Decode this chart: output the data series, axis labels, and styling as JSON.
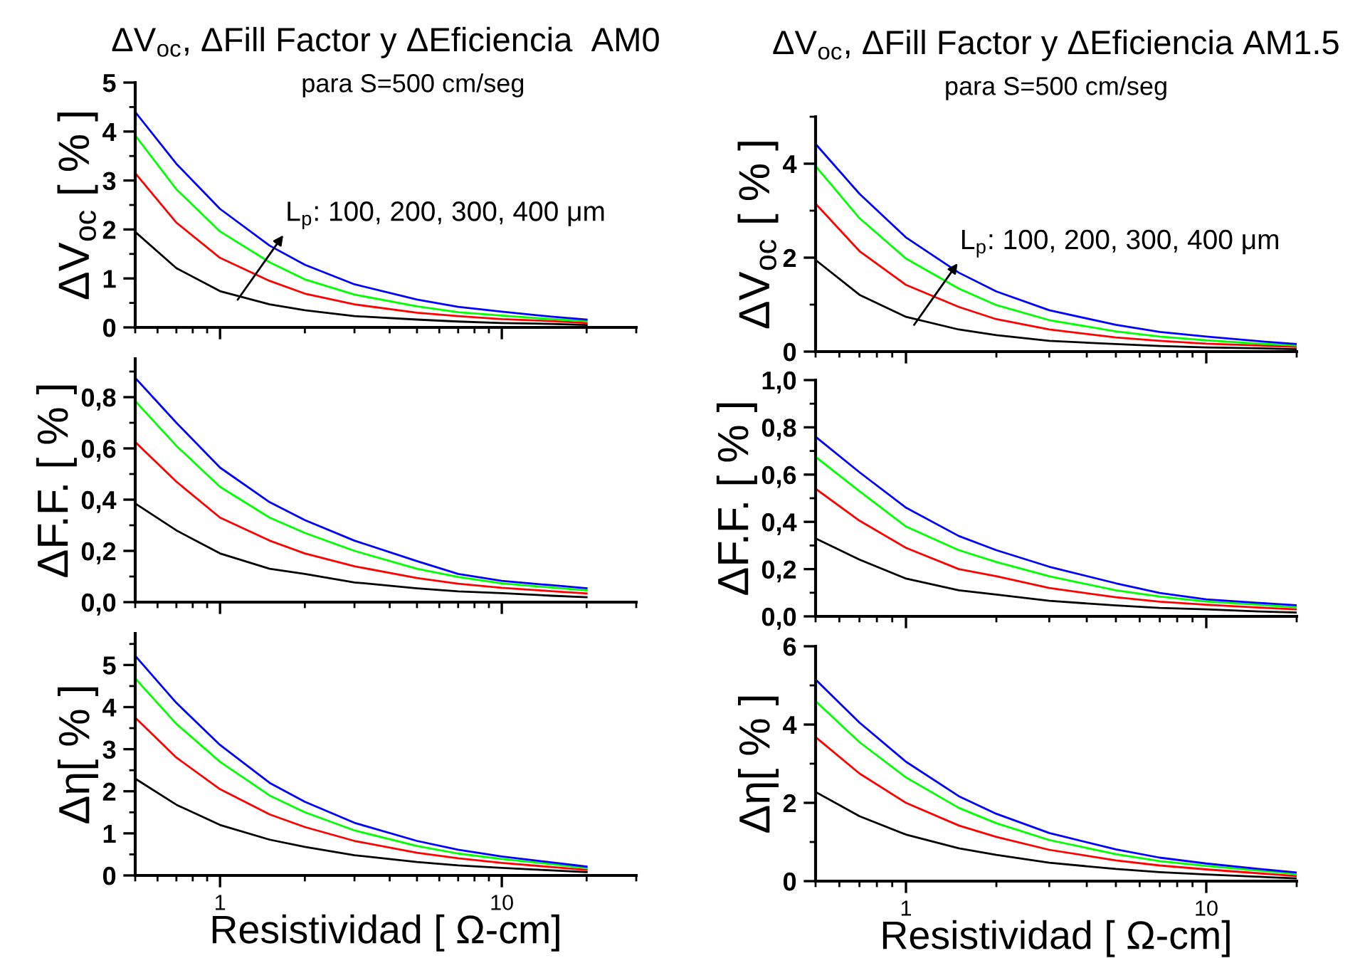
{
  "chart_data": [
    {
      "type": "line",
      "title": "ΔV$_{oc}$, ΔFill Factor y ΔEficiencia  AM0",
      "subtitle": "para S=500 cm/seg",
      "ylabel": "ΔV$_{oc}$ [ % ]",
      "log": "x",
      "xlim": [
        0.5,
        30
      ],
      "xticks": [
        1,
        10
      ],
      "ylim": [
        0,
        5
      ],
      "yticks": [
        0,
        1,
        2,
        3,
        4,
        5
      ],
      "tick_labels": "y",
      "grid": false,
      "x": [
        0.5,
        0.7,
        1,
        1.5,
        2,
        3,
        5,
        7,
        10,
        15,
        20
      ],
      "annotations": [
        "L$_{p}$: 100, 200, 300, 400 μm"
      ],
      "series": [
        {
          "color": "#000000",
          "values": [
            1.95,
            1.21,
            0.74,
            0.47,
            0.35,
            0.23,
            0.16,
            0.12,
            0.09,
            0.07,
            0.05
          ]
        },
        {
          "color": "#ff0000",
          "values": [
            3.15,
            2.14,
            1.42,
            0.95,
            0.69,
            0.47,
            0.3,
            0.23,
            0.17,
            0.13,
            0.09
          ]
        },
        {
          "color": "#00ff00",
          "values": [
            3.92,
            2.82,
            1.96,
            1.33,
            0.98,
            0.67,
            0.43,
            0.31,
            0.24,
            0.17,
            0.13
          ]
        },
        {
          "color": "#0000ff",
          "values": [
            4.4,
            3.34,
            2.42,
            1.67,
            1.28,
            0.88,
            0.57,
            0.42,
            0.32,
            0.22,
            0.16
          ]
        }
      ]
    },
    {
      "type": "line",
      "title": "ΔV$_{oc}$, ΔFill Factor y ΔEficiencia AM1.5",
      "subtitle": "para S=500 cm/seg",
      "ylabel": "ΔV$_{oc}$ [ % ]",
      "log": "x",
      "xlim": [
        0.5,
        20
      ],
      "xticks": [
        1,
        10
      ],
      "ylim": [
        0,
        5
      ],
      "yticks": [
        0,
        2,
        4
      ],
      "tick_labels": "y",
      "grid": false,
      "x": [
        0.5,
        0.7,
        1,
        1.5,
        2,
        3,
        5,
        7,
        10,
        15,
        20
      ],
      "annotations": [
        "L$_{p}$: 100, 200, 300, 400 μm"
      ],
      "series": [
        {
          "color": "#000000",
          "values": [
            1.95,
            1.21,
            0.74,
            0.47,
            0.35,
            0.23,
            0.16,
            0.12,
            0.09,
            0.07,
            0.05
          ]
        },
        {
          "color": "#ff0000",
          "values": [
            3.15,
            2.14,
            1.42,
            0.95,
            0.69,
            0.47,
            0.3,
            0.23,
            0.17,
            0.13,
            0.1
          ]
        },
        {
          "color": "#00ff00",
          "values": [
            3.95,
            2.84,
            1.98,
            1.34,
            0.99,
            0.67,
            0.43,
            0.32,
            0.24,
            0.17,
            0.13
          ]
        },
        {
          "color": "#0000ff",
          "values": [
            4.42,
            3.36,
            2.43,
            1.68,
            1.28,
            0.88,
            0.57,
            0.42,
            0.32,
            0.22,
            0.16
          ]
        }
      ]
    },
    {
      "type": "line",
      "ylabel": "ΔF.F. [ % ]",
      "log": "x",
      "xlim": [
        0.5,
        30
      ],
      "xticks": [
        1,
        10
      ],
      "ylim": [
        0,
        0.95
      ],
      "yticks": [
        {
          "value": 0,
          "label": "0,0"
        },
        {
          "value": 0.2,
          "label": "0,2"
        },
        {
          "value": 0.4,
          "label": "0,4"
        },
        {
          "value": 0.6,
          "label": "0,6"
        },
        {
          "value": 0.8,
          "label": "0,8"
        }
      ],
      "tick_labels": "y",
      "grid": false,
      "x": [
        0.5,
        0.7,
        1,
        1.5,
        2,
        3,
        5,
        7,
        10,
        15,
        20
      ],
      "series": [
        {
          "color": "#000000",
          "values": [
            0.385,
            0.28,
            0.19,
            0.13,
            0.11,
            0.077,
            0.054,
            0.042,
            0.035,
            0.025,
            0.019
          ]
        },
        {
          "color": "#ff0000",
          "values": [
            0.625,
            0.47,
            0.33,
            0.24,
            0.19,
            0.14,
            0.094,
            0.072,
            0.056,
            0.043,
            0.034
          ]
        },
        {
          "color": "#00ff00",
          "values": [
            0.785,
            0.61,
            0.45,
            0.33,
            0.27,
            0.2,
            0.13,
            0.098,
            0.073,
            0.057,
            0.046
          ]
        },
        {
          "color": "#0000ff",
          "values": [
            0.875,
            0.7,
            0.525,
            0.39,
            0.32,
            0.24,
            0.16,
            0.11,
            0.083,
            0.066,
            0.054
          ]
        }
      ]
    },
    {
      "type": "line",
      "ylabel": "ΔF.F. [ % ]",
      "log": "x",
      "xlim": [
        0.5,
        20
      ],
      "xticks": [
        1,
        10
      ],
      "ylim": [
        0,
        1
      ],
      "yticks": [
        {
          "value": 0,
          "label": "0,0"
        },
        {
          "value": 0.2,
          "label": "0,2"
        },
        {
          "value": 0.4,
          "label": "0,4"
        },
        {
          "value": 0.6,
          "label": "0,6"
        },
        {
          "value": 0.8,
          "label": "0,8"
        },
        {
          "value": 1,
          "label": "1,0"
        }
      ],
      "tick_labels": "y",
      "grid": false,
      "x": [
        0.5,
        0.7,
        1,
        1.5,
        2,
        3,
        5,
        7,
        10,
        15,
        20
      ],
      "series": [
        {
          "color": "#000000",
          "values": [
            0.33,
            0.24,
            0.16,
            0.11,
            0.092,
            0.066,
            0.046,
            0.036,
            0.03,
            0.021,
            0.016
          ]
        },
        {
          "color": "#ff0000",
          "values": [
            0.54,
            0.405,
            0.29,
            0.2,
            0.17,
            0.12,
            0.081,
            0.062,
            0.049,
            0.037,
            0.03
          ]
        },
        {
          "color": "#00ff00",
          "values": [
            0.675,
            0.53,
            0.38,
            0.28,
            0.23,
            0.17,
            0.11,
            0.084,
            0.063,
            0.049,
            0.039
          ]
        },
        {
          "color": "#0000ff",
          "values": [
            0.76,
            0.61,
            0.46,
            0.34,
            0.28,
            0.21,
            0.14,
            0.099,
            0.072,
            0.057,
            0.047
          ]
        }
      ]
    },
    {
      "type": "line",
      "ylabel": "Δη[ % ]",
      "xlabel": "Resistividad [ Ω-cm]",
      "log": "x",
      "xlim": [
        0.5,
        30
      ],
      "xticks": [
        1,
        10
      ],
      "ylim": [
        0,
        5.75
      ],
      "yticks": [
        0,
        1,
        2,
        3,
        4,
        5
      ],
      "grid": false,
      "x": [
        0.5,
        0.7,
        1,
        1.5,
        2,
        3,
        5,
        7,
        10,
        15,
        20
      ],
      "series": [
        {
          "color": "#000000",
          "values": [
            2.3,
            1.68,
            1.2,
            0.85,
            0.68,
            0.48,
            0.32,
            0.24,
            0.18,
            0.12,
            0.08
          ]
        },
        {
          "color": "#ff0000",
          "values": [
            3.75,
            2.8,
            2.05,
            1.45,
            1.15,
            0.82,
            0.54,
            0.41,
            0.3,
            0.2,
            0.13
          ]
        },
        {
          "color": "#00ff00",
          "values": [
            4.68,
            3.6,
            2.7,
            1.9,
            1.5,
            1.07,
            0.7,
            0.52,
            0.39,
            0.27,
            0.18
          ]
        },
        {
          "color": "#0000ff",
          "values": [
            5.22,
            4.1,
            3.1,
            2.2,
            1.75,
            1.25,
            0.82,
            0.61,
            0.45,
            0.31,
            0.21
          ]
        }
      ]
    },
    {
      "type": "line",
      "ylabel": "Δη[ % ]",
      "xlabel": "Resistividad [ Ω-cm]",
      "log": "x",
      "xlim": [
        0.5,
        20
      ],
      "xticks": [
        1,
        10
      ],
      "ylim": [
        0,
        6
      ],
      "yticks": [
        0,
        2,
        4,
        6
      ],
      "grid": false,
      "x": [
        0.5,
        0.7,
        1,
        1.5,
        2,
        3,
        5,
        7,
        10,
        15,
        20
      ],
      "series": [
        {
          "color": "#000000",
          "values": [
            2.28,
            1.66,
            1.19,
            0.84,
            0.67,
            0.47,
            0.31,
            0.23,
            0.17,
            0.11,
            0.07
          ]
        },
        {
          "color": "#ff0000",
          "values": [
            3.68,
            2.75,
            2.0,
            1.42,
            1.13,
            0.8,
            0.53,
            0.4,
            0.3,
            0.2,
            0.13
          ]
        },
        {
          "color": "#00ff00",
          "values": [
            4.6,
            3.55,
            2.65,
            1.87,
            1.48,
            1.05,
            0.69,
            0.51,
            0.39,
            0.27,
            0.18
          ]
        },
        {
          "color": "#0000ff",
          "values": [
            5.15,
            4.05,
            3.05,
            2.17,
            1.72,
            1.23,
            0.81,
            0.6,
            0.45,
            0.31,
            0.22
          ]
        }
      ]
    }
  ]
}
